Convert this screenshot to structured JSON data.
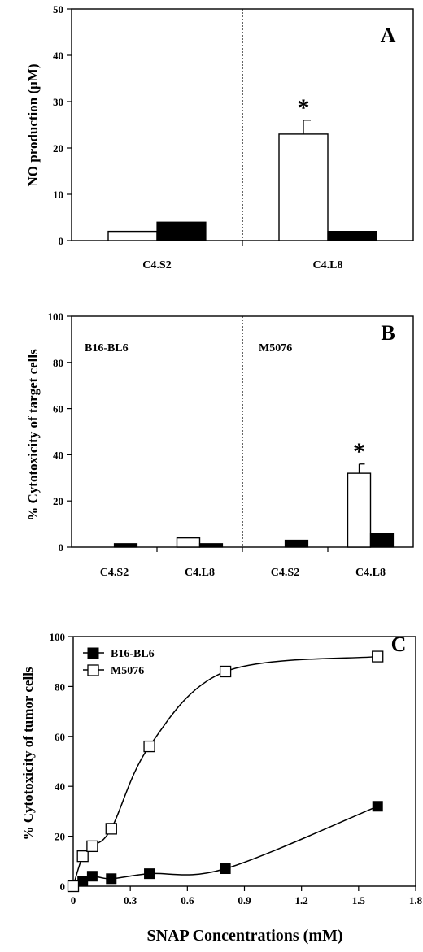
{
  "chart_data": [
    {
      "type": "bar",
      "panel": "A",
      "ylabel": "NO production (μM)",
      "ylim": [
        0,
        50
      ],
      "yticks": [
        "0",
        "10",
        "20",
        "30",
        "40",
        "50"
      ],
      "categories": [
        "C4.S2",
        "C4.L8"
      ],
      "series": [
        {
          "style": "open",
          "values": [
            2,
            23
          ],
          "errors": [
            0.2,
            3
          ]
        },
        {
          "style": "filled",
          "values": [
            4,
            2
          ],
          "errors": [
            0.2,
            0.2
          ]
        }
      ],
      "annotations": [
        "*"
      ]
    },
    {
      "type": "bar",
      "panel": "B",
      "ylabel": "% Cytotoxicity of target cells",
      "ylim": [
        0,
        100
      ],
      "yticks": [
        "0",
        "20",
        "40",
        "60",
        "80",
        "100"
      ],
      "groups": [
        "B16-BL6",
        "M5076"
      ],
      "categories": [
        "C4.S2",
        "C4.L8",
        "C4.S2",
        "C4.L8"
      ],
      "series": [
        {
          "style": "open",
          "values": [
            0,
            4,
            0,
            32
          ],
          "errors": [
            0,
            0.5,
            0,
            4
          ]
        },
        {
          "style": "filled",
          "values": [
            1.5,
            1.5,
            3,
            6
          ],
          "errors": [
            0.3,
            0.3,
            0.3,
            0.5
          ]
        }
      ],
      "annotations": [
        "*"
      ]
    },
    {
      "type": "line",
      "panel": "C",
      "xlabel": "SNAP Concentrations (mM)",
      "ylabel": "% Cytotoxicity of tumor cells",
      "xlim": [
        0,
        1.8
      ],
      "ylim": [
        0,
        100
      ],
      "xticks": [
        "0",
        "0.3",
        "0.6",
        "0.9",
        "1.2",
        "1.5",
        "1.8"
      ],
      "yticks": [
        "0",
        "20",
        "40",
        "60",
        "80",
        "100"
      ],
      "series": [
        {
          "name": "B16-BL6",
          "style": "filled",
          "x": [
            0,
            0.05,
            0.1,
            0.2,
            0.4,
            0.8,
            1.6
          ],
          "y": [
            0,
            2,
            4,
            3,
            5,
            7,
            32
          ]
        },
        {
          "name": "M5076",
          "style": "open",
          "x": [
            0,
            0.05,
            0.1,
            0.2,
            0.4,
            0.8,
            1.6
          ],
          "y": [
            0,
            12,
            16,
            23,
            56,
            86,
            92
          ]
        }
      ]
    }
  ]
}
